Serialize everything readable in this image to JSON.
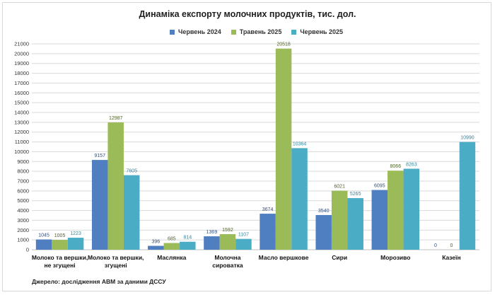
{
  "chart_data": {
    "type": "bar",
    "title": "Динаміка експорту молочних продуктів, тис. дол.",
    "categories": [
      [
        "Молоко та вершки,",
        "не згущені"
      ],
      [
        "Молоко та вершки,",
        "згущені"
      ],
      [
        "Маслянка"
      ],
      [
        "Молочна",
        "сироватка"
      ],
      [
        "Масло вершкове"
      ],
      [
        "Сири"
      ],
      [
        "Морозиво"
      ],
      [
        "Казеїн"
      ]
    ],
    "series": [
      {
        "name": "Червень  2024",
        "color": "#4f7fc0",
        "labelColor": "#2f4f7f",
        "values": [
          1045,
          9157,
          396,
          1369,
          3674,
          3540,
          6095,
          0
        ]
      },
      {
        "name": "Травень  2025",
        "color": "#9bbb59",
        "labelColor": "#4f6228",
        "values": [
          1005,
          12987,
          685,
          1592,
          20518,
          6021,
          8066,
          0
        ]
      },
      {
        "name": "Червень  2025",
        "color": "#4bacc6",
        "labelColor": "#31859c",
        "values": [
          1223,
          7605,
          814,
          1107,
          10364,
          5265,
          8263,
          10990
        ]
      }
    ],
    "ylim": [
      0,
      21000
    ],
    "ytick_step": 1000,
    "grid": true,
    "legend": "top"
  },
  "source": "Джерело: дослідження АВМ за даними ДССУ"
}
